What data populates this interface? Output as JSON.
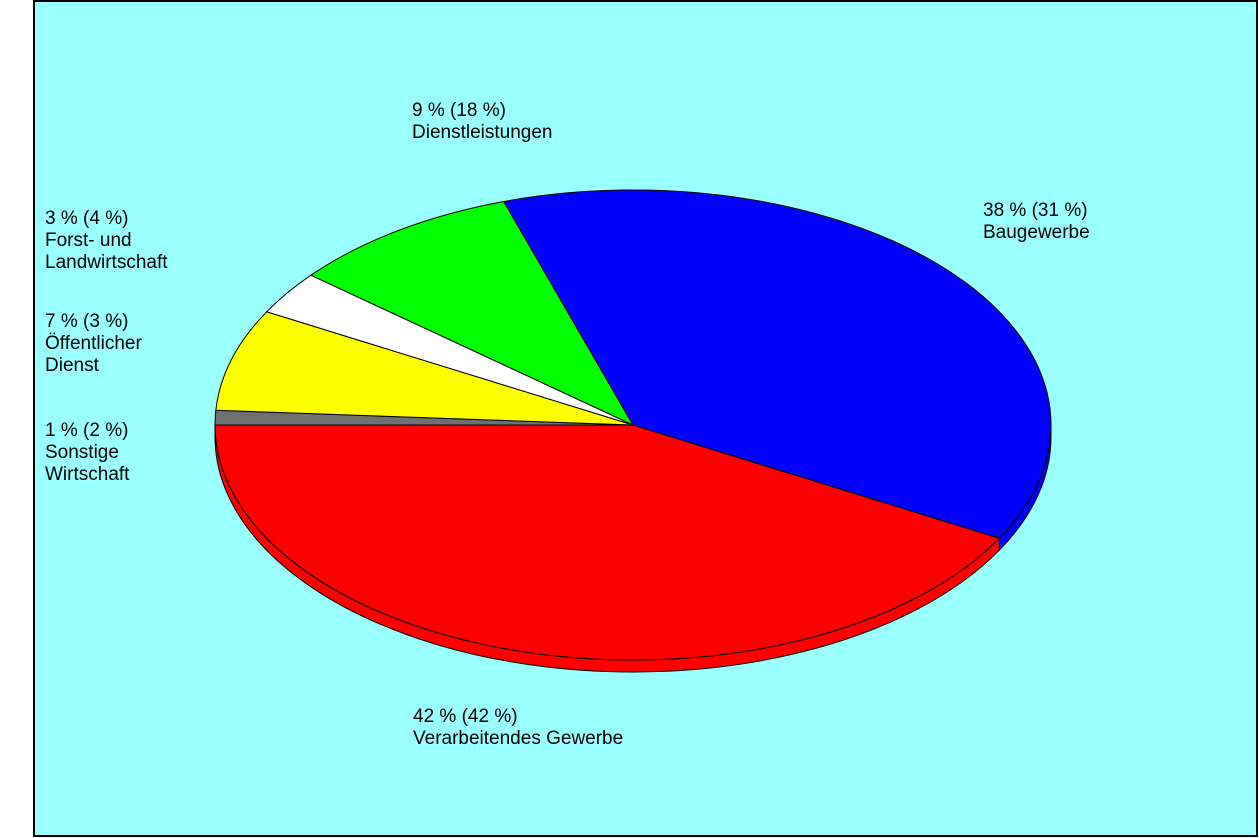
{
  "chart_data": {
    "type": "pie",
    "categories": [
      "Sonstige Wirtschaft",
      "Öffentlicher Dienst",
      "Forst- und Landwirtschaft",
      "Dienstleistungen",
      "Baugewerbe",
      "Verarbeitendes Gewerbe"
    ],
    "values": [
      1,
      7,
      3,
      9,
      38,
      42
    ],
    "value_labels": [
      "1 % (2 %)",
      "7 % (3 %)",
      "3 % (4 %)",
      "9 % (18 %)",
      "38 % (31 %)",
      "42 % (42 %)"
    ],
    "colors": [
      "#707070",
      "#ffff00",
      "#ffffff",
      "#00ff00",
      "#0000ff",
      "#ff0000"
    ],
    "background": "#99ffff"
  }
}
